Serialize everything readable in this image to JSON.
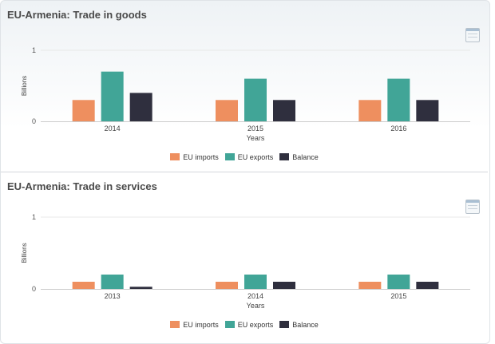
{
  "colors": {
    "imports": "#ee8f5f",
    "exports": "#41a597",
    "balance": "#2f2f3e",
    "axis": "#cccccc",
    "grid": "#e8e8e8"
  },
  "icons": [
    "table-icon"
  ],
  "charts": [
    {
      "title": "EU-Armenia: Trade in goods"
    },
    {
      "title": "EU-Armenia: Trade in services"
    }
  ],
  "chart_data": [
    {
      "type": "bar",
      "title": "EU-Armenia: Trade in goods",
      "xlabel": "Years",
      "ylabel": "Billions",
      "ylim": [
        0,
        1
      ],
      "yticks": [
        0,
        1
      ],
      "categories": [
        "2014",
        "2015",
        "2016"
      ],
      "series": [
        {
          "name": "EU imports",
          "values": [
            0.3,
            0.3,
            0.3
          ]
        },
        {
          "name": "EU exports",
          "values": [
            0.7,
            0.6,
            0.6
          ]
        },
        {
          "name": "Balance",
          "values": [
            0.4,
            0.3,
            0.3
          ]
        }
      ],
      "legend": "bottom",
      "grid": true
    },
    {
      "type": "bar",
      "title": "EU-Armenia: Trade in services",
      "xlabel": "Years",
      "ylabel": "Billions",
      "ylim": [
        0,
        1
      ],
      "yticks": [
        0,
        1
      ],
      "categories": [
        "2013",
        "2014",
        "2015"
      ],
      "series": [
        {
          "name": "EU imports",
          "values": [
            0.1,
            0.1,
            0.1
          ]
        },
        {
          "name": "EU exports",
          "values": [
            0.2,
            0.2,
            0.2
          ]
        },
        {
          "name": "Balance",
          "values": [
            0.03,
            0.1,
            0.1
          ]
        }
      ],
      "legend": "bottom",
      "grid": true
    }
  ]
}
